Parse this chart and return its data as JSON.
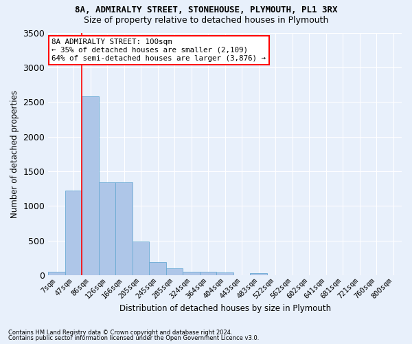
{
  "title1": "8A, ADMIRALTY STREET, STONEHOUSE, PLYMOUTH, PL1 3RX",
  "title2": "Size of property relative to detached houses in Plymouth",
  "xlabel": "Distribution of detached houses by size in Plymouth",
  "ylabel": "Number of detached properties",
  "bin_labels": [
    "7sqm",
    "47sqm",
    "86sqm",
    "126sqm",
    "166sqm",
    "205sqm",
    "245sqm",
    "285sqm",
    "324sqm",
    "364sqm",
    "404sqm",
    "443sqm",
    "483sqm",
    "522sqm",
    "562sqm",
    "602sqm",
    "641sqm",
    "681sqm",
    "721sqm",
    "760sqm",
    "800sqm"
  ],
  "bar_heights": [
    50,
    1220,
    2580,
    1340,
    1340,
    490,
    185,
    100,
    50,
    50,
    40,
    0,
    35,
    0,
    0,
    0,
    0,
    0,
    0,
    0,
    0
  ],
  "bar_color": "#aec6e8",
  "bar_edgecolor": "#6aaad4",
  "property_line_label": "8A ADMIRALTY STREET: 100sqm",
  "annotation_line1": "← 35% of detached houses are smaller (2,109)",
  "annotation_line2": "64% of semi-detached houses are larger (3,876) →",
  "ylim": [
    0,
    3500
  ],
  "yticks": [
    0,
    500,
    1000,
    1500,
    2000,
    2500,
    3000,
    3500
  ],
  "vline_x": 1.5,
  "vline_color": "red",
  "footnote1": "Contains HM Land Registry data © Crown copyright and database right 2024.",
  "footnote2": "Contains public sector information licensed under the Open Government Licence v3.0.",
  "background_color": "#e8f0fb",
  "grid_color": "#ffffff",
  "annotation_box_facecolor": "#ffffff",
  "annotation_box_edgecolor": "red",
  "title1_fontsize": 9,
  "title2_fontsize": 9
}
